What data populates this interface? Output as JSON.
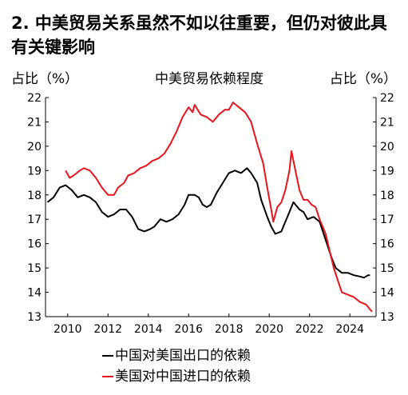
{
  "heading": "2. 中美贸易关系虽然不如以往重要，但仍对彼此具有关键影响",
  "chart_data": {
    "type": "line",
    "title": "中美贸易依赖程度",
    "ylabel_left": "占比（%）",
    "ylabel_right": "占比（%）",
    "xlim": [
      2008.9,
      2025.3
    ],
    "ylim": [
      13,
      22
    ],
    "x_ticks": [
      2010,
      2012,
      2014,
      2016,
      2018,
      2020,
      2022,
      2024
    ],
    "y_ticks": [
      13,
      14,
      15,
      16,
      17,
      18,
      19,
      20,
      21,
      22
    ],
    "grid": false,
    "legend_position": "bottom",
    "series": [
      {
        "name": "中国对美国出口的依赖",
        "color": "#000000",
        "points": [
          [
            2009.0,
            17.7
          ],
          [
            2009.3,
            17.9
          ],
          [
            2009.6,
            18.3
          ],
          [
            2009.9,
            18.4
          ],
          [
            2010.2,
            18.2
          ],
          [
            2010.5,
            17.9
          ],
          [
            2010.8,
            18.0
          ],
          [
            2011.1,
            17.9
          ],
          [
            2011.4,
            17.7
          ],
          [
            2011.7,
            17.3
          ],
          [
            2012.0,
            17.1
          ],
          [
            2012.3,
            17.2
          ],
          [
            2012.6,
            17.4
          ],
          [
            2012.9,
            17.4
          ],
          [
            2013.2,
            17.1
          ],
          [
            2013.5,
            16.6
          ],
          [
            2013.8,
            16.5
          ],
          [
            2014.1,
            16.6
          ],
          [
            2014.3,
            16.7
          ],
          [
            2014.6,
            17.0
          ],
          [
            2014.9,
            16.9
          ],
          [
            2015.2,
            17.0
          ],
          [
            2015.5,
            17.2
          ],
          [
            2015.8,
            17.6
          ],
          [
            2016.0,
            18.0
          ],
          [
            2016.3,
            18.0
          ],
          [
            2016.5,
            17.9
          ],
          [
            2016.7,
            17.6
          ],
          [
            2016.9,
            17.5
          ],
          [
            2017.1,
            17.6
          ],
          [
            2017.4,
            18.1
          ],
          [
            2017.7,
            18.5
          ],
          [
            2018.0,
            18.9
          ],
          [
            2018.3,
            19.0
          ],
          [
            2018.6,
            18.9
          ],
          [
            2018.9,
            19.1
          ],
          [
            2019.1,
            18.9
          ],
          [
            2019.4,
            18.5
          ],
          [
            2019.6,
            17.8
          ],
          [
            2019.9,
            17.1
          ],
          [
            2020.1,
            16.7
          ],
          [
            2020.3,
            16.4
          ],
          [
            2020.6,
            16.5
          ],
          [
            2020.8,
            16.9
          ],
          [
            2021.0,
            17.3
          ],
          [
            2021.2,
            17.7
          ],
          [
            2021.5,
            17.4
          ],
          [
            2021.7,
            17.3
          ],
          [
            2021.9,
            17.0
          ],
          [
            2022.2,
            17.1
          ],
          [
            2022.5,
            16.9
          ],
          [
            2022.7,
            16.4
          ],
          [
            2022.9,
            15.9
          ],
          [
            2023.1,
            15.4
          ],
          [
            2023.3,
            15.0
          ],
          [
            2023.6,
            14.8
          ],
          [
            2023.9,
            14.8
          ],
          [
            2024.2,
            14.7
          ],
          [
            2024.5,
            14.65
          ],
          [
            2024.7,
            14.6
          ],
          [
            2024.9,
            14.7
          ],
          [
            2025.0,
            14.7
          ]
        ]
      },
      {
        "name": "美国对中国进口的依赖",
        "color": "#e8141c",
        "points": [
          [
            2009.9,
            19.0
          ],
          [
            2010.1,
            18.7
          ],
          [
            2010.3,
            18.8
          ],
          [
            2010.6,
            19.0
          ],
          [
            2010.8,
            19.1
          ],
          [
            2011.1,
            19.0
          ],
          [
            2011.4,
            18.7
          ],
          [
            2011.7,
            18.3
          ],
          [
            2012.0,
            18.0
          ],
          [
            2012.3,
            18.0
          ],
          [
            2012.5,
            18.3
          ],
          [
            2012.8,
            18.5
          ],
          [
            2013.0,
            18.8
          ],
          [
            2013.3,
            18.9
          ],
          [
            2013.6,
            19.1
          ],
          [
            2013.9,
            19.2
          ],
          [
            2014.2,
            19.4
          ],
          [
            2014.5,
            19.5
          ],
          [
            2014.8,
            19.7
          ],
          [
            2015.1,
            20.1
          ],
          [
            2015.4,
            20.6
          ],
          [
            2015.7,
            21.2
          ],
          [
            2016.0,
            21.6
          ],
          [
            2016.2,
            21.4
          ],
          [
            2016.3,
            21.7
          ],
          [
            2016.6,
            21.3
          ],
          [
            2016.9,
            21.2
          ],
          [
            2017.2,
            21.0
          ],
          [
            2017.5,
            21.3
          ],
          [
            2017.8,
            21.5
          ],
          [
            2018.0,
            21.5
          ],
          [
            2018.2,
            21.8
          ],
          [
            2018.5,
            21.6
          ],
          [
            2018.8,
            21.4
          ],
          [
            2019.1,
            21.0
          ],
          [
            2019.4,
            20.1
          ],
          [
            2019.7,
            19.3
          ],
          [
            2019.9,
            18.3
          ],
          [
            2020.1,
            17.4
          ],
          [
            2020.2,
            16.9
          ],
          [
            2020.4,
            17.5
          ],
          [
            2020.6,
            17.7
          ],
          [
            2020.8,
            18.2
          ],
          [
            2021.0,
            19.0
          ],
          [
            2021.1,
            19.8
          ],
          [
            2021.3,
            19.0
          ],
          [
            2021.5,
            18.2
          ],
          [
            2021.7,
            17.8
          ],
          [
            2021.9,
            17.8
          ],
          [
            2022.1,
            17.6
          ],
          [
            2022.3,
            17.5
          ],
          [
            2022.5,
            17.0
          ],
          [
            2022.8,
            16.4
          ],
          [
            2023.0,
            15.7
          ],
          [
            2023.2,
            15.0
          ],
          [
            2023.4,
            14.5
          ],
          [
            2023.6,
            14.0
          ],
          [
            2023.9,
            13.9
          ],
          [
            2024.2,
            13.8
          ],
          [
            2024.5,
            13.6
          ],
          [
            2024.8,
            13.5
          ],
          [
            2025.0,
            13.3
          ],
          [
            2025.1,
            13.2
          ]
        ]
      }
    ]
  }
}
